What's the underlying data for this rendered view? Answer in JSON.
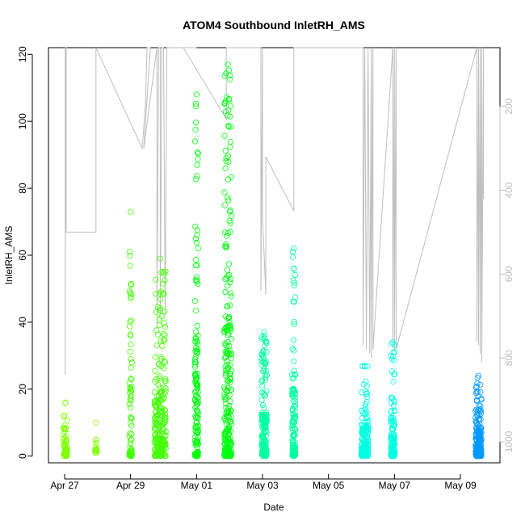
{
  "chart_data": {
    "type": "scatter",
    "title": "ATOM4 Southbound InletRH_AMS",
    "xlabel": "Date",
    "ylabel": "InletRH_AMS",
    "x_ticks": [
      "Apr 27",
      "Apr 29",
      "May 01",
      "May 03",
      "May 05",
      "May 07",
      "May 09"
    ],
    "y_ticks": [
      0,
      20,
      40,
      60,
      80,
      100,
      120
    ],
    "y2_ticks": [
      200,
      400,
      600,
      800,
      1000
    ],
    "xlim": [
      "2018-04-26 18:00",
      "2018-05-09 20:00"
    ],
    "ylim": [
      -2,
      122
    ],
    "y2lim": [
      60,
      1050
    ],
    "y2_reversed": true,
    "y2_color": "#bebebe",
    "secondary_line_color": "#bebebe",
    "series": [
      {
        "date": "2018-04-27",
        "color": "#7fff00",
        "clusters": [
          {
            "day": 27.02,
            "width": 0.12,
            "min": 0,
            "max": 16,
            "n": 60
          },
          {
            "day": 27.95,
            "width": 0.06,
            "min": 1,
            "max": 10,
            "n": 15
          }
        ]
      },
      {
        "date": "2018-04-29",
        "color": "#40ff00",
        "clusters": [
          {
            "day": 29.0,
            "width": 0.08,
            "min": 0,
            "max": 73,
            "n": 70
          },
          {
            "day": 29.9,
            "width": 0.35,
            "min": 0,
            "max": 59,
            "n": 220
          }
        ]
      },
      {
        "date": "2018-05-01",
        "color": "#00ff10",
        "clusters": [
          {
            "day": 31.0,
            "width": 0.1,
            "min": 0,
            "max": 108,
            "n": 150
          },
          {
            "day": 31.95,
            "width": 0.22,
            "min": 0,
            "max": 117,
            "n": 260
          }
        ]
      },
      {
        "date": "2018-05-03",
        "color": "#00ffa0",
        "clusters": [
          {
            "day": 33.05,
            "width": 0.16,
            "min": 0,
            "max": 37,
            "n": 160
          },
          {
            "day": 33.95,
            "width": 0.1,
            "min": 0,
            "max": 62,
            "n": 120
          }
        ]
      },
      {
        "date": "2018-05-06",
        "color": "#00ffe0",
        "clusters": [
          {
            "day": 36.1,
            "width": 0.22,
            "min": 0,
            "max": 27,
            "n": 160
          },
          {
            "day": 36.95,
            "width": 0.12,
            "min": 0,
            "max": 34,
            "n": 120
          }
        ]
      },
      {
        "date": "2018-05-09",
        "color": "#0099ff",
        "clusters": [
          {
            "day": 39.55,
            "width": 0.18,
            "min": 0,
            "max": 24,
            "n": 180
          }
        ]
      }
    ],
    "secondary_line": [
      [
        27.02,
        60
      ],
      [
        27.02,
        840
      ],
      [
        27.03,
        60
      ],
      [
        27.05,
        60
      ],
      [
        27.05,
        500
      ],
      [
        27.95,
        500
      ],
      [
        27.95,
        60
      ],
      [
        27.95,
        60
      ],
      [
        29.35,
        300
      ],
      [
        29.45,
        200
      ],
      [
        29.5,
        60
      ],
      [
        29.6,
        60
      ],
      [
        29.4,
        300
      ],
      [
        29.8,
        60
      ],
      [
        29.8,
        720
      ],
      [
        29.85,
        60
      ],
      [
        29.9,
        60
      ],
      [
        29.9,
        700
      ],
      [
        29.95,
        60
      ],
      [
        30.0,
        60
      ],
      [
        30.05,
        700
      ],
      [
        30.1,
        60
      ],
      [
        30.4,
        60
      ],
      [
        30.4,
        60
      ],
      [
        31.0,
        60
      ],
      [
        31.0,
        60
      ],
      [
        30.6,
        60
      ],
      [
        31.9,
        230
      ],
      [
        31.9,
        60
      ],
      [
        31.95,
        60
      ],
      [
        32.0,
        60
      ],
      [
        32.05,
        60
      ],
      [
        32.95,
        60
      ],
      [
        32.95,
        640
      ],
      [
        33.0,
        60
      ],
      [
        33.0,
        460
      ],
      [
        33.1,
        650
      ],
      [
        33.1,
        320
      ],
      [
        33.95,
        450
      ],
      [
        33.95,
        60
      ],
      [
        36.05,
        60
      ],
      [
        36.05,
        770
      ],
      [
        36.1,
        60
      ],
      [
        36.15,
        780
      ],
      [
        36.2,
        60
      ],
      [
        36.25,
        790
      ],
      [
        36.3,
        60
      ],
      [
        36.3,
        800
      ],
      [
        36.35,
        60
      ],
      [
        36.35,
        780
      ],
      [
        36.95,
        60
      ],
      [
        36.95,
        760
      ],
      [
        37.0,
        60
      ],
      [
        37.0,
        780
      ],
      [
        37.05,
        60
      ],
      [
        37.05,
        780
      ],
      [
        39.5,
        60
      ],
      [
        39.5,
        760
      ],
      [
        39.55,
        60
      ],
      [
        39.55,
        770
      ],
      [
        39.6,
        60
      ],
      [
        39.6,
        790
      ],
      [
        39.65,
        60
      ],
      [
        39.65,
        810
      ],
      [
        39.7,
        60
      ],
      [
        39.7,
        420
      ]
    ]
  }
}
